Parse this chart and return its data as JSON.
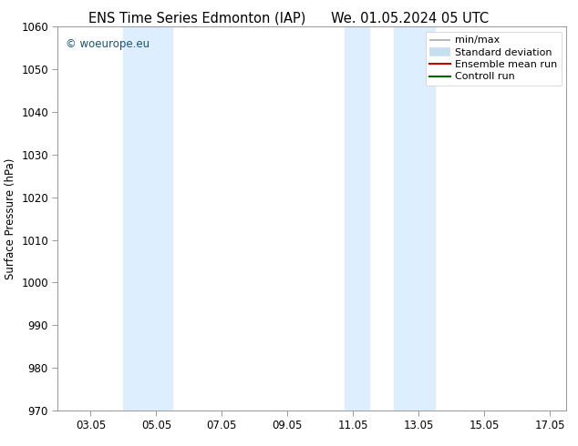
{
  "title_left": "ENS Time Series Edmonton (IAP)",
  "title_right": "We. 01.05.2024 05 UTC",
  "ylabel": "Surface Pressure (hPa)",
  "ylim": [
    970,
    1060
  ],
  "yticks": [
    970,
    980,
    990,
    1000,
    1010,
    1020,
    1030,
    1040,
    1050,
    1060
  ],
  "x_min": 2.0,
  "x_max": 17.5,
  "xtick_labels": [
    "03.05",
    "05.05",
    "07.05",
    "09.05",
    "11.05",
    "13.05",
    "15.05",
    "17.05"
  ],
  "xtick_positions": [
    3,
    5,
    7,
    9,
    11,
    13,
    15,
    17
  ],
  "shaded_bands": [
    {
      "x_start": 4.0,
      "x_end": 5.5,
      "color": "#ddeeff"
    },
    {
      "x_start": 10.75,
      "x_end": 11.5,
      "color": "#ddeeff"
    },
    {
      "x_start": 12.25,
      "x_end": 13.5,
      "color": "#ddeeff"
    }
  ],
  "watermark_text": "© woeurope.eu",
  "watermark_color": "#1a5276",
  "background_color": "#ffffff",
  "legend_items": [
    {
      "label": "min/max",
      "color": "#aaaaaa",
      "lw": 1.2
    },
    {
      "label": "Standard deviation",
      "color": "#c8dff0",
      "lw": 6
    },
    {
      "label": "Ensemble mean run",
      "color": "#cc0000",
      "lw": 1.5
    },
    {
      "label": "Controll run",
      "color": "#006600",
      "lw": 1.5
    }
  ],
  "title_fontsize": 10.5,
  "tick_fontsize": 8.5,
  "ylabel_fontsize": 8.5,
  "legend_fontsize": 8
}
